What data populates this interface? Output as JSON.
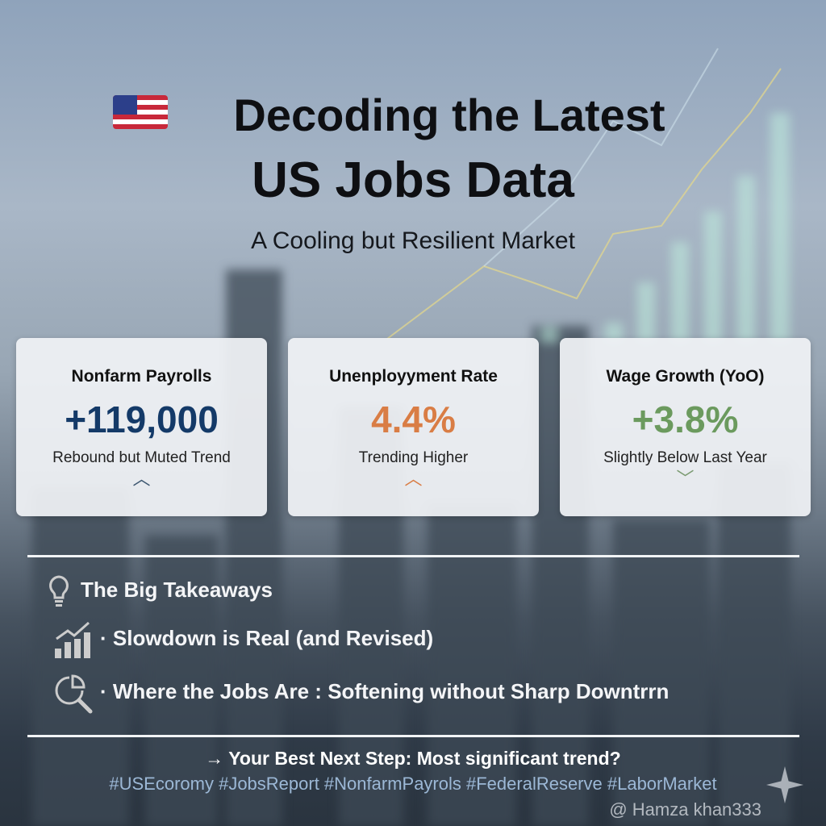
{
  "header": {
    "title_line1": "Decoding the Latest",
    "title_line2": "US Jobs Data",
    "subtitle": "A Cooling but Resilient Market",
    "flag_icon": "us-flag-icon"
  },
  "cards": [
    {
      "label": "Nonfarm Payrolls",
      "value": "+119,000",
      "desc": "Rebound but Muted Trend",
      "trend": "up",
      "color": "#143a68"
    },
    {
      "label": "Unenployyment Rate",
      "value": "4.4%",
      "desc": "Trending Higher",
      "trend": "up",
      "color": "#d97d45"
    },
    {
      "label": "Wage Growth (YoO)",
      "value": "+3.8%",
      "desc": "Slightly Below Last Year",
      "trend": "down",
      "color": "#6b9a5e"
    }
  ],
  "takeaways": {
    "heading": "The Big Takeaways",
    "items": [
      "· Slowdown is Real (and Revised)",
      "· Where the Jobs Are  : Softening without Sharp Downtrrn"
    ]
  },
  "cta": "→ Your Best Next Step: Most significant trend?",
  "hashtags": "#USEcoromy #JobsReport #NonfarmPayrols #FederalReserve #LaborMarket",
  "watermark": "@ Hamza khan333"
}
